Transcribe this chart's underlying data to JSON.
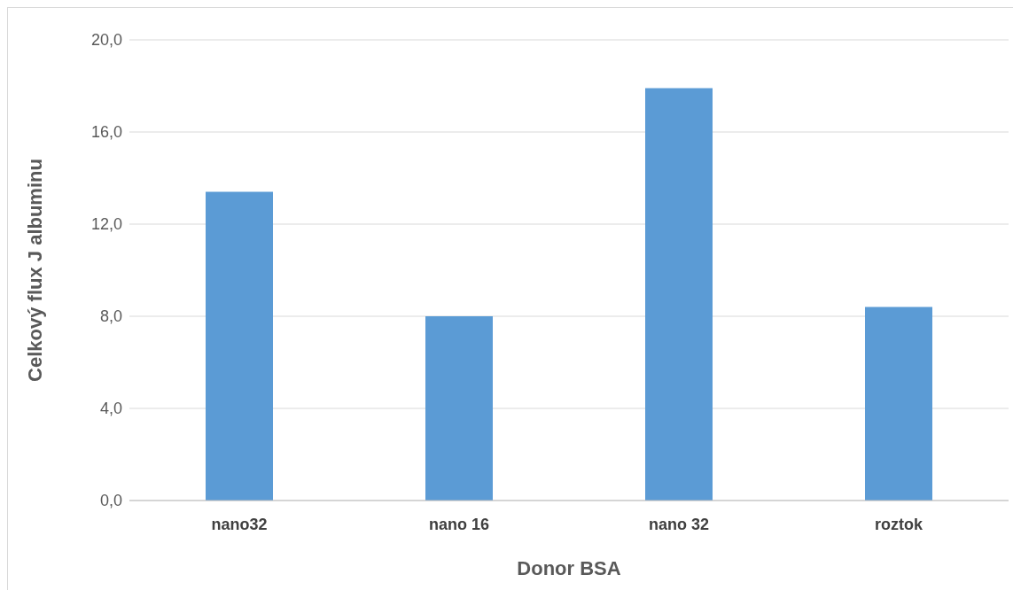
{
  "chart_data": {
    "type": "bar",
    "xlabel": "Donor BSA",
    "ylabel": "Celkový  flux  J albuminu",
    "categories": [
      "nano32",
      "nano 16",
      "nano 32",
      "roztok"
    ],
    "values": [
      13.4,
      8.0,
      17.9,
      8.4
    ],
    "color": "#5b9bd5",
    "ylim": [
      0,
      20
    ],
    "yticks": [
      {
        "value": 0,
        "label": "0,0"
      },
      {
        "value": 4,
        "label": "4,0"
      },
      {
        "value": 8,
        "label": "8,0"
      },
      {
        "value": 12,
        "label": "12,0"
      },
      {
        "value": 16,
        "label": "16,0"
      },
      {
        "value": 20,
        "label": "20,0"
      }
    ],
    "grid": "y"
  }
}
